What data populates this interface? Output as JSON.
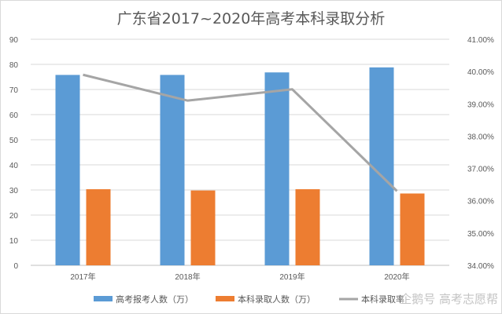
{
  "chart_data": {
    "type": "bar",
    "title": "广东省2017~2020年高考本科录取分析",
    "categories": [
      "2017年",
      "2018年",
      "2019年",
      "2020年"
    ],
    "series": [
      {
        "name": "高考报考人数（万）",
        "axis": "left",
        "kind": "bar",
        "color": "#5b9bd5",
        "values": [
          75.8,
          75.8,
          76.8,
          78.8
        ]
      },
      {
        "name": "本科录取人数（万）",
        "axis": "left",
        "kind": "bar",
        "color": "#ed7d31",
        "values": [
          30.3,
          29.8,
          30.3,
          28.6
        ]
      },
      {
        "name": "本科录取率",
        "axis": "right",
        "kind": "line",
        "color": "#a5a5a5",
        "values": [
          39.9,
          39.1,
          39.45,
          36.3
        ]
      }
    ],
    "y_left": {
      "min": 0,
      "max": 90,
      "ticks": [
        "0",
        "10",
        "20",
        "30",
        "40",
        "50",
        "60",
        "70",
        "80",
        "90"
      ]
    },
    "y_right": {
      "min": 34,
      "max": 41,
      "ticks": [
        "34.00%",
        "35.00%",
        "36.00%",
        "37.00%",
        "38.00%",
        "39.00%",
        "40.00%",
        "41.00%"
      ]
    },
    "grid": true,
    "legend_position": "bottom"
  },
  "watermark": "企鹅号 高考志愿帮"
}
